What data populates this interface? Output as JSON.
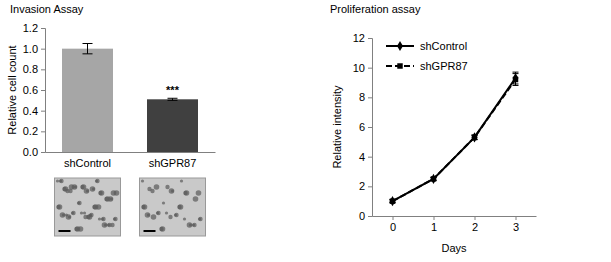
{
  "chart_data": [
    {
      "type": "bar",
      "title": "Invasion Assay",
      "y_label": "Relative cell count",
      "categories": [
        "shControl",
        "shGPR87"
      ],
      "values": [
        1.0,
        0.51
      ],
      "errors": [
        0.05,
        0.01
      ],
      "colors": [
        "#a6a6a6",
        "#404040"
      ],
      "ylim": [
        0,
        1.2
      ],
      "yticks": [
        {
          "value": 0,
          "label": "0.0"
        },
        0.2,
        0.4,
        0.6,
        0.8,
        {
          "value": 1,
          "label": "1.0"
        },
        1.2
      ],
      "annotations": [
        {
          "text": "***",
          "x": "shGPR87"
        }
      ]
    },
    {
      "type": "line",
      "title": "Proliferation assay",
      "x_label": "Days",
      "y_label": "Relative intensity",
      "x": [
        0,
        1,
        2,
        3
      ],
      "series": [
        {
          "name": "shControl",
          "color": "#000000",
          "values": [
            1.0,
            2.5,
            5.3,
            9.3
          ],
          "errors": [
            0.1,
            0.1,
            0.15,
            0.4
          ],
          "marker": "diamond",
          "line_style": "solid"
        },
        {
          "name": "shGPR87",
          "color": "#000000",
          "values": [
            1.0,
            2.5,
            5.3,
            9.2
          ],
          "errors": [
            0.1,
            0.1,
            0.15,
            0.4
          ],
          "marker": "square",
          "line_style": "dashed"
        }
      ],
      "xlim": [
        -0.5,
        3.5
      ],
      "xticks": [
        0,
        1,
        2,
        3
      ],
      "ylim": [
        0,
        12
      ],
      "yticks": [
        0,
        2,
        4,
        6,
        8,
        10,
        12
      ],
      "legend": "upper left"
    }
  ]
}
